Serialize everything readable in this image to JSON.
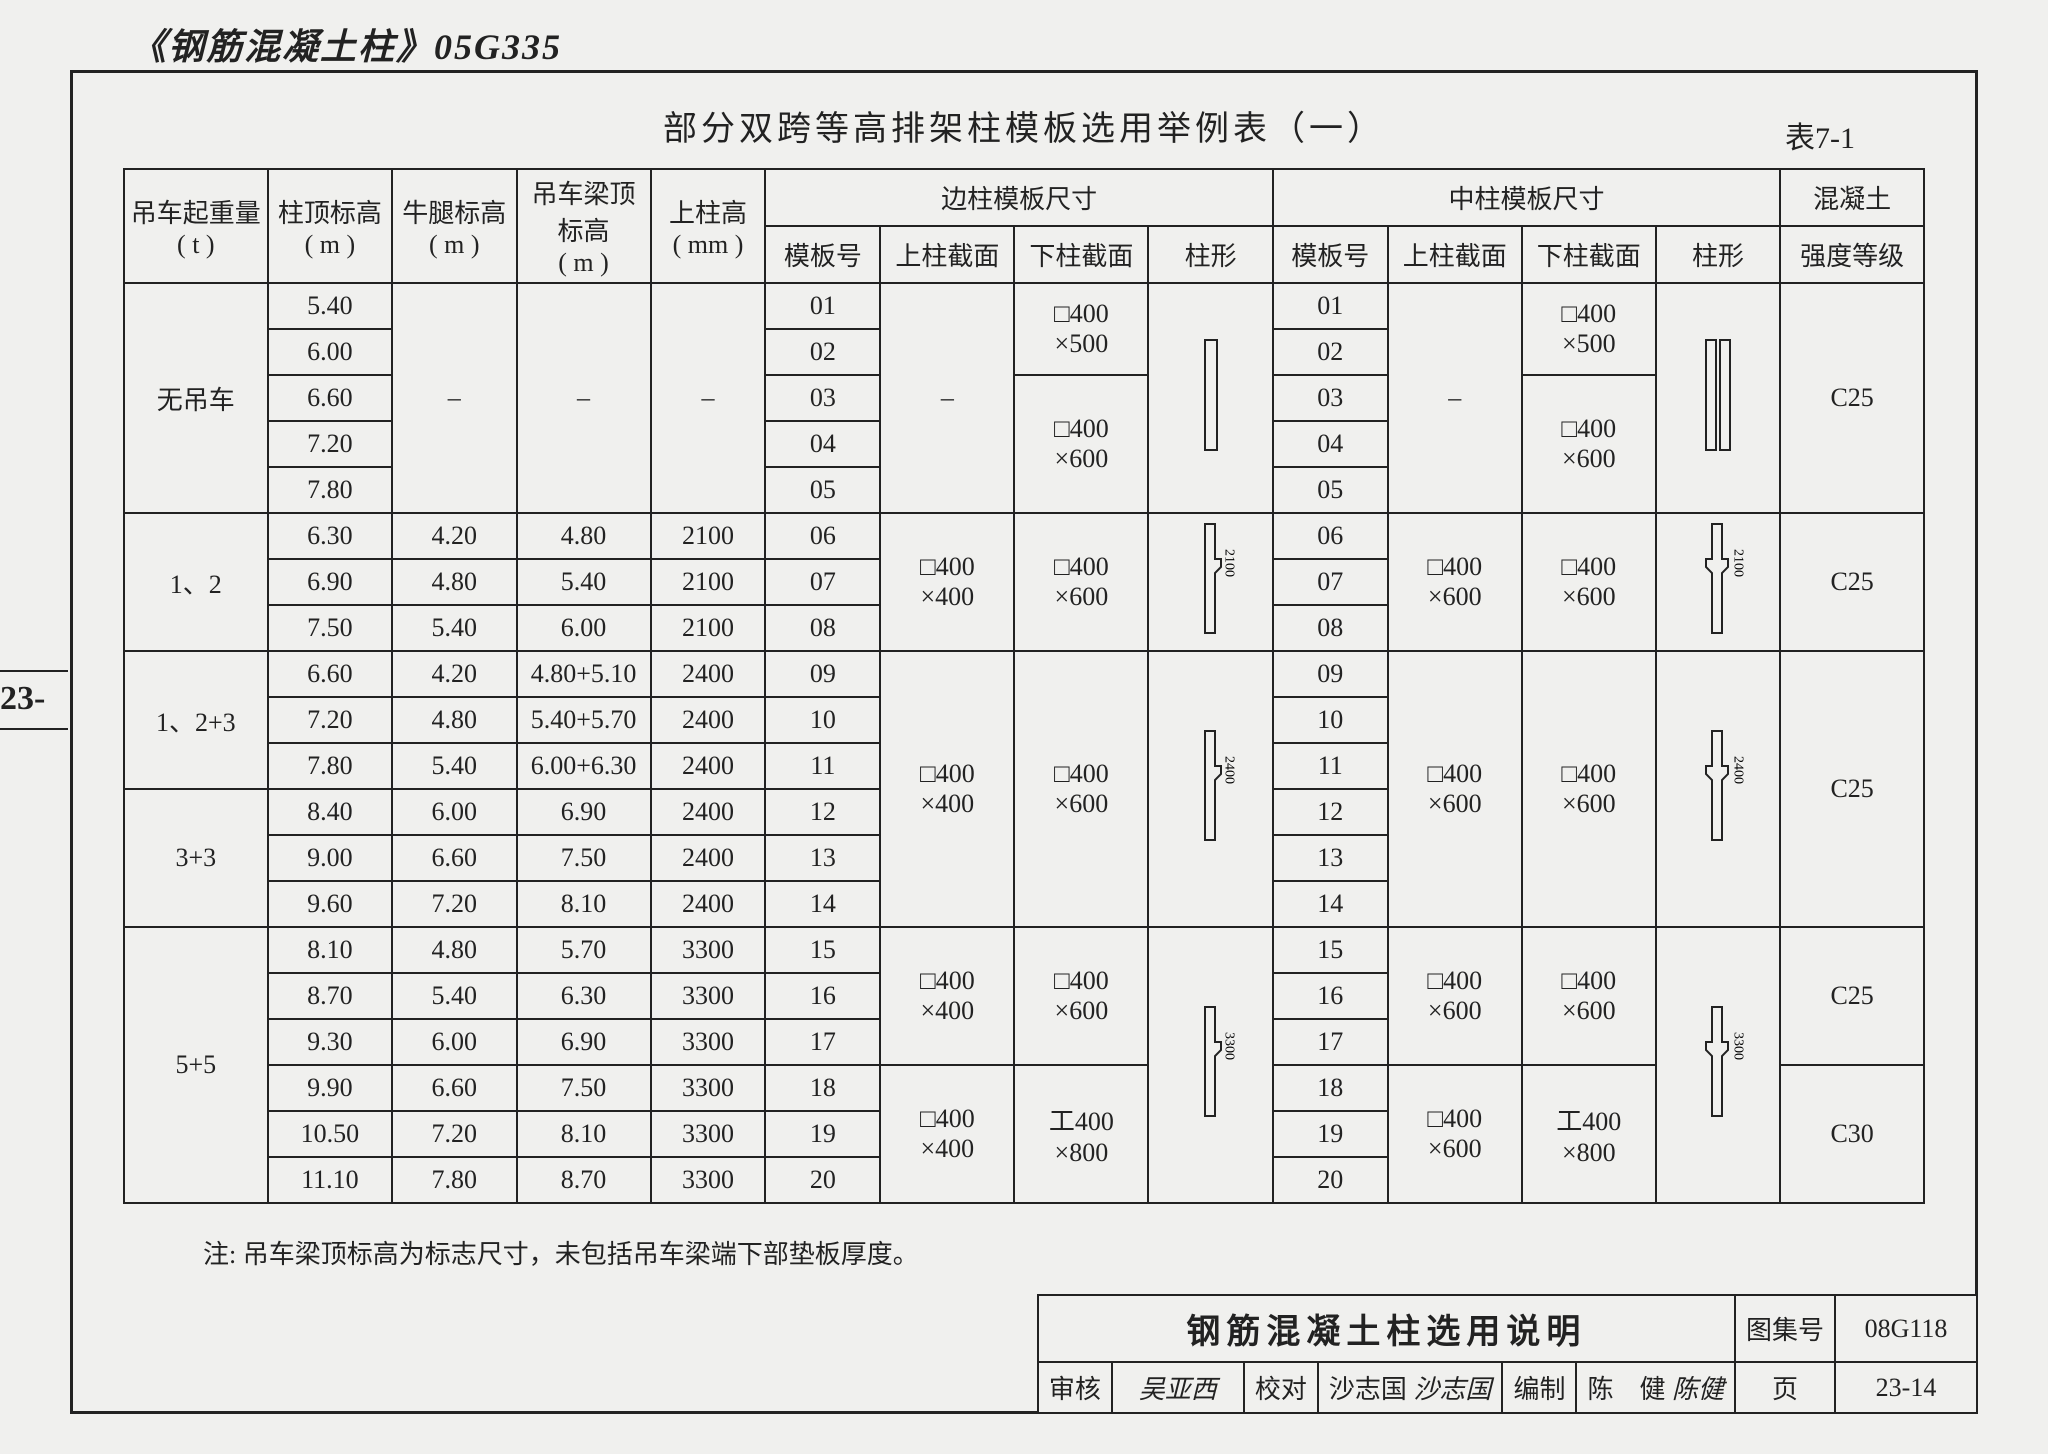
{
  "document": {
    "header_title": "《钢筋混凝土柱》05G335",
    "side_tab": "23-",
    "table_title": "部分双跨等高排架柱模板选用举例表（一）",
    "table_number": "表7-1",
    "note": "注: 吊车梁顶标高为标志尺寸，未包括吊车梁端下部垫板厚度。"
  },
  "headers": {
    "row1": [
      "吊车起重量",
      "柱顶标高",
      "牛腿标高",
      "吊车梁顶标高",
      "上柱高",
      "边柱模板尺寸",
      "中柱模板尺寸",
      "混凝土"
    ],
    "row1_units": [
      "( t )",
      "( m )",
      "( m )",
      "( m )",
      "( mm )"
    ],
    "row2_side": [
      "模板号",
      "上柱截面",
      "下柱截面",
      "柱形"
    ],
    "row2_mid": [
      "模板号",
      "上柱截面",
      "下柱截面",
      "柱形"
    ],
    "row2_last": "强度等级"
  },
  "col_widths_pct": [
    7.5,
    6.5,
    6.5,
    7,
    6,
    6,
    7,
    7,
    6.5,
    6,
    7,
    7,
    6.5,
    7.5
  ],
  "groups": [
    {
      "crane": "无吊车",
      "rows": [
        {
          "ht": "5.40",
          "nl": "",
          "bt": "",
          "uc": "",
          "sm": "01",
          "mm": "01"
        },
        {
          "ht": "6.00",
          "nl": "",
          "bt": "",
          "uc": "",
          "sm": "02",
          "mm": "02"
        },
        {
          "ht": "6.60",
          "nl": "-",
          "bt": "-",
          "uc": "-",
          "sm": "03",
          "mm": "03"
        },
        {
          "ht": "7.20",
          "nl": "",
          "bt": "",
          "uc": "",
          "sm": "04",
          "mm": "04"
        },
        {
          "ht": "7.80",
          "nl": "",
          "bt": "",
          "uc": "",
          "sm": "05",
          "mm": "05"
        }
      ],
      "nl_merged": "–",
      "bt_merged": "–",
      "uc_merged": "–",
      "side_upper": "–",
      "side_lower_top": "□400\n×500",
      "side_lower_bot": "□400\n×600",
      "mid_upper": "–",
      "mid_lower_top": "□400\n×500",
      "mid_lower_bot": "□400\n×600",
      "shape_side": {
        "type": "rect"
      },
      "shape_mid": {
        "type": "rect2"
      },
      "dim": "",
      "concrete": "C25"
    },
    {
      "crane": "1、2",
      "rows": [
        {
          "ht": "6.30",
          "nl": "4.20",
          "bt": "4.80",
          "uc": "2100",
          "sm": "06",
          "mm": "06"
        },
        {
          "ht": "6.90",
          "nl": "4.80",
          "bt": "5.40",
          "uc": "2100",
          "sm": "07",
          "mm": "07"
        },
        {
          "ht": "7.50",
          "nl": "5.40",
          "bt": "6.00",
          "uc": "2100",
          "sm": "08",
          "mm": "08"
        }
      ],
      "side_upper": "□400\n×400",
      "side_lower": "□400\n×600",
      "mid_upper": "□400\n×600",
      "mid_lower": "□400\n×600",
      "shape_side": {
        "type": "L"
      },
      "shape_mid": {
        "type": "T"
      },
      "dim": "2100",
      "concrete": "C25"
    },
    {
      "crane_rows": [
        "1、2+3",
        "3+3"
      ],
      "crane_split": [
        3,
        3
      ],
      "rows": [
        {
          "ht": "6.60",
          "nl": "4.20",
          "bt": "4.80+5.10",
          "uc": "2400",
          "sm": "09",
          "mm": "09"
        },
        {
          "ht": "7.20",
          "nl": "4.80",
          "bt": "5.40+5.70",
          "uc": "2400",
          "sm": "10",
          "mm": "10"
        },
        {
          "ht": "7.80",
          "nl": "5.40",
          "bt": "6.00+6.30",
          "uc": "2400",
          "sm": "11",
          "mm": "11"
        },
        {
          "ht": "8.40",
          "nl": "6.00",
          "bt": "6.90",
          "uc": "2400",
          "sm": "12",
          "mm": "12"
        },
        {
          "ht": "9.00",
          "nl": "6.60",
          "bt": "7.50",
          "uc": "2400",
          "sm": "13",
          "mm": "13"
        },
        {
          "ht": "9.60",
          "nl": "7.20",
          "bt": "8.10",
          "uc": "2400",
          "sm": "14",
          "mm": "14"
        }
      ],
      "side_upper": "□400\n×400",
      "side_lower": "□400\n×600",
      "mid_upper": "□400\n×600",
      "mid_lower": "□400\n×600",
      "shape_side": {
        "type": "L"
      },
      "shape_mid": {
        "type": "T"
      },
      "dim": "2400",
      "concrete": "C25"
    },
    {
      "crane": "5+5",
      "rows": [
        {
          "ht": "8.10",
          "nl": "4.80",
          "bt": "5.70",
          "uc": "3300",
          "sm": "15",
          "mm": "15"
        },
        {
          "ht": "8.70",
          "nl": "5.40",
          "bt": "6.30",
          "uc": "3300",
          "sm": "16",
          "mm": "16"
        },
        {
          "ht": "9.30",
          "nl": "6.00",
          "bt": "6.90",
          "uc": "3300",
          "sm": "17",
          "mm": "17"
        },
        {
          "ht": "9.90",
          "nl": "6.60",
          "bt": "7.50",
          "uc": "3300",
          "sm": "18",
          "mm": "18"
        },
        {
          "ht": "10.50",
          "nl": "7.20",
          "bt": "8.10",
          "uc": "3300",
          "sm": "19",
          "mm": "19"
        },
        {
          "ht": "11.10",
          "nl": "7.80",
          "bt": "8.70",
          "uc": "3300",
          "sm": "20",
          "mm": "20"
        }
      ],
      "subsections": [
        {
          "span": 3,
          "side_upper": "□400\n×400",
          "side_lower": "□400\n×600",
          "mid_upper": "□400\n×600",
          "mid_lower": "□400\n×600",
          "concrete": "C25"
        },
        {
          "span": 3,
          "side_upper": "□400\n×400",
          "side_lower": "工400\n×800",
          "mid_upper": "□400\n×600",
          "mid_lower": "工400\n×800",
          "concrete": "C30"
        }
      ],
      "shape_side": {
        "type": "L"
      },
      "shape_mid": {
        "type": "T"
      },
      "dim": "3300"
    }
  ],
  "titleblock": {
    "main": "钢筋混凝土柱选用说明",
    "album_label": "图集号",
    "album_val": "08G118",
    "page_label": "页",
    "page_val": "23-14",
    "review_label": "审核",
    "review_sig": "吴亚西",
    "check_label": "校对",
    "check_name": "沙志国",
    "check_sig": "沙志国",
    "compile_label": "编制",
    "compile_name": "陈　健",
    "compile_sig": "陈健"
  },
  "style": {
    "border_color": "#222222",
    "background": "#f0f0ee",
    "header_fontsize": 26,
    "title_fontsize": 34
  }
}
